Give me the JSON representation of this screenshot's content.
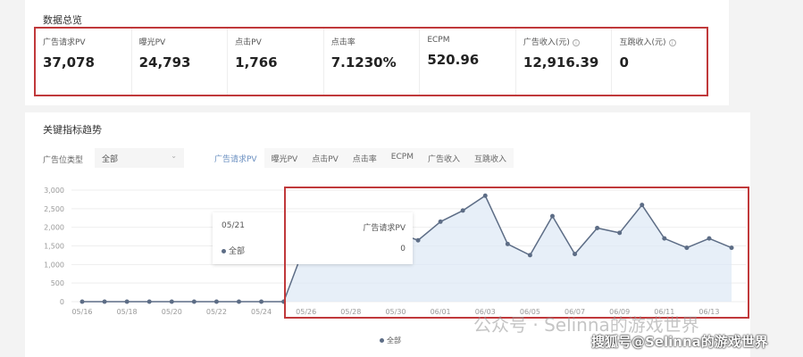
{
  "overview": {
    "title": "数据总览",
    "metrics": [
      {
        "label": "广告请求PV",
        "value": "37,078",
        "info": false
      },
      {
        "label": "曝光PV",
        "value": "24,793",
        "info": false
      },
      {
        "label": "点击PV",
        "value": "1,766",
        "info": false
      },
      {
        "label": "点击率",
        "value": "7.1230%",
        "info": false
      },
      {
        "label": "ECPM",
        "value": "520.96",
        "info": false
      },
      {
        "label": "广告收入(元)",
        "value": "12,916.39",
        "info": true
      },
      {
        "label": "互跳收入(元)",
        "value": "0",
        "info": true
      }
    ]
  },
  "trend": {
    "title": "关键指标趋势",
    "filter_label": "广告位类型",
    "filter_value": "全部",
    "tabs": [
      "广告请求PV",
      "曝光PV",
      "点击PV",
      "点击率",
      "ECPM",
      "广告收入",
      "互跳收入"
    ],
    "active_tab": 0,
    "tooltip": {
      "date": "05/21",
      "metric": "广告请求PV",
      "series": "全部",
      "value": "0"
    }
  },
  "chart_data": {
    "type": "area",
    "series": [
      {
        "name": "全部",
        "values": [
          0,
          0,
          0,
          0,
          0,
          0,
          0,
          0,
          0,
          0,
          1600,
          1750,
          1850,
          1800,
          1870,
          1650,
          2150,
          2450,
          2850,
          1550,
          1250,
          2300,
          1280,
          1980,
          1850,
          2600,
          1700,
          1450,
          1700,
          1450
        ]
      }
    ],
    "x": [
      "05/16",
      "05/17",
      "05/18",
      "05/19",
      "05/20",
      "05/21",
      "05/22",
      "05/23",
      "05/24",
      "05/25",
      "05/26",
      "05/27",
      "05/28",
      "05/29",
      "05/30",
      "05/31",
      "06/01",
      "06/02",
      "06/03",
      "06/04",
      "06/05",
      "06/06",
      "06/07",
      "06/08",
      "06/09",
      "06/10",
      "06/11",
      "06/12",
      "06/13",
      "06/14"
    ],
    "xticks": [
      "05/16",
      "05/18",
      "05/20",
      "05/22",
      "05/24",
      "05/26",
      "05/28",
      "05/30",
      "06/01",
      "06/03",
      "06/05",
      "06/07",
      "06/09",
      "06/11",
      "06/13"
    ],
    "yticks": [
      "0",
      "500",
      "1,000",
      "1,500",
      "2,000",
      "2,500",
      "3,000"
    ],
    "ylim": [
      0,
      3000
    ],
    "grid": true,
    "legend": "bottom",
    "color": "#5d6d86",
    "fill": "#dde8f5"
  },
  "watermarks": [
    "公众号 · Selinna的游戏世界",
    "搜狐号@Selinna的游戏世界"
  ],
  "colors": {
    "highlight": "#c0393b",
    "accent": "#6a8fc0"
  }
}
